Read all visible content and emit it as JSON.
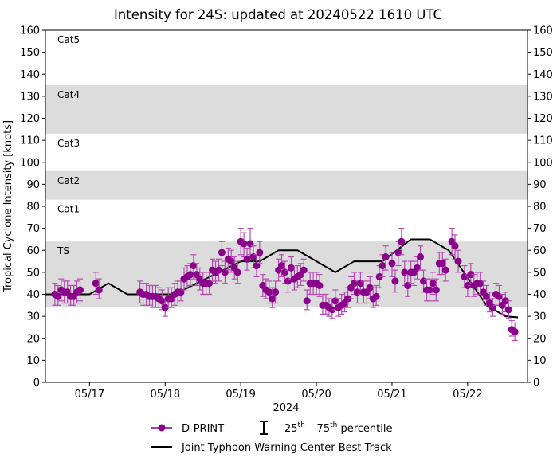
{
  "chart_data": {
    "type": "scatter",
    "title": "Intensity for 24S: updated at 20240522 1610 UTC",
    "xlabel": "2024",
    "ylabel": "Tropical Cyclone Intensity [knots]",
    "ylim": [
      0,
      160
    ],
    "xlim": [
      "05-16 10:00",
      "05-22 19:00"
    ],
    "yticks": [
      0,
      10,
      20,
      30,
      40,
      50,
      60,
      70,
      80,
      90,
      100,
      110,
      120,
      130,
      140,
      150,
      160
    ],
    "xticks": [
      {
        "t": "05-17 00:00",
        "label": "05/17"
      },
      {
        "t": "05-18 00:00",
        "label": "05/18"
      },
      {
        "t": "05-19 00:00",
        "label": "05/19"
      },
      {
        "t": "05-20 00:00",
        "label": "05/20"
      },
      {
        "t": "05-21 00:00",
        "label": "05/21"
      },
      {
        "t": "05-22 00:00",
        "label": "05/22"
      }
    ],
    "grid": false,
    "category_bands": [
      {
        "label": "TS",
        "min": 34,
        "max": 64,
        "shaded": true
      },
      {
        "label": "Cat1",
        "min": 64,
        "max": 83,
        "shaded": false
      },
      {
        "label": "Cat2",
        "min": 83,
        "max": 96,
        "shaded": true
      },
      {
        "label": "Cat3",
        "min": 96,
        "max": 113,
        "shaded": false
      },
      {
        "label": "Cat4",
        "min": 113,
        "max": 135,
        "shaded": true
      },
      {
        "label": "Cat5",
        "min": 135,
        "max": 160,
        "shaded": false
      }
    ],
    "colors": {
      "dprint": "#8b008b",
      "errorbar": "#b44bb4",
      "best_track": "#000000",
      "band": "#dcdcdc"
    },
    "legend": {
      "placement": "bottom",
      "dprint": "D-PRINT",
      "pct_a": "25",
      "pct_a_sup": "th",
      "pct_mid": " – 75",
      "pct_b_sup": "th",
      "pct_end": " percentile",
      "best_track": "Joint Typhoon Warning Center Best Track"
    },
    "series": [
      {
        "name": "Joint Typhoon Warning Center Best Track",
        "type": "line",
        "points": [
          [
            "05-16 10:00",
            40
          ],
          [
            "05-17 00:00",
            40
          ],
          [
            "05-17 06:00",
            45
          ],
          [
            "05-17 12:00",
            40
          ],
          [
            "05-18 03:00",
            40
          ],
          [
            "05-19 00:00",
            55
          ],
          [
            "05-19 06:00",
            55
          ],
          [
            "05-19 12:00",
            60
          ],
          [
            "05-19 18:00",
            60
          ],
          [
            "05-20 06:00",
            50
          ],
          [
            "05-20 12:00",
            55
          ],
          [
            "05-20 21:00",
            55
          ],
          [
            "05-21 06:00",
            65
          ],
          [
            "05-21 12:00",
            65
          ],
          [
            "05-21 18:00",
            60
          ],
          [
            "05-22 06:00",
            35
          ],
          [
            "05-22 12:00",
            30
          ],
          [
            "05-22 16:00",
            29.5
          ]
        ]
      },
      {
        "name": "D-PRINT",
        "type": "scatter-errorbar",
        "fields": [
          "time",
          "value",
          "p25",
          "p75"
        ],
        "points": [
          [
            "05-16 13:00",
            40,
            35,
            45
          ],
          [
            "05-16 14:00",
            39,
            35,
            44
          ],
          [
            "05-16 15:00",
            42,
            37,
            47
          ],
          [
            "05-16 16:00",
            41,
            36,
            46
          ],
          [
            "05-16 17:00",
            41,
            36,
            46
          ],
          [
            "05-16 18:00",
            39,
            35,
            44
          ],
          [
            "05-16 19:00",
            39,
            35,
            44
          ],
          [
            "05-16 20:00",
            41,
            36,
            46
          ],
          [
            "05-16 21:00",
            42,
            37,
            47
          ],
          [
            "05-17 02:00",
            45,
            40,
            50
          ],
          [
            "05-17 03:00",
            42,
            38,
            47
          ],
          [
            "05-17 16:00",
            41,
            36,
            46
          ],
          [
            "05-17 17:00",
            40,
            35,
            45
          ],
          [
            "05-17 18:00",
            40,
            35,
            45
          ],
          [
            "05-17 19:00",
            39,
            35,
            44
          ],
          [
            "05-17 20:00",
            39,
            34,
            44
          ],
          [
            "05-17 21:00",
            39,
            34,
            44
          ],
          [
            "05-17 22:00",
            38,
            34,
            43
          ],
          [
            "05-17 23:00",
            37,
            33,
            42
          ],
          [
            "05-18 00:00",
            34,
            30,
            38
          ],
          [
            "05-18 01:00",
            38,
            34,
            43
          ],
          [
            "05-18 02:00",
            38,
            34,
            43
          ],
          [
            "05-18 03:00",
            40,
            35,
            45
          ],
          [
            "05-18 04:00",
            41,
            36,
            46
          ],
          [
            "05-18 05:00",
            41,
            37,
            46
          ],
          [
            "05-18 06:00",
            47,
            42,
            52
          ],
          [
            "05-18 07:00",
            48,
            43,
            53
          ],
          [
            "05-18 08:00",
            49,
            44,
            54
          ],
          [
            "05-18 09:00",
            53,
            47,
            58
          ],
          [
            "05-18 10:00",
            49,
            44,
            54
          ],
          [
            "05-18 11:00",
            47,
            42,
            52
          ],
          [
            "05-18 12:00",
            45,
            40,
            50
          ],
          [
            "05-18 13:00",
            45,
            40,
            50
          ],
          [
            "05-18 14:00",
            45,
            40,
            50
          ],
          [
            "05-18 15:00",
            51,
            46,
            56
          ],
          [
            "05-18 16:00",
            50,
            45,
            55
          ],
          [
            "05-18 17:00",
            51,
            46,
            56
          ],
          [
            "05-18 18:00",
            59,
            53,
            64
          ],
          [
            "05-18 19:00",
            50,
            45,
            55
          ],
          [
            "05-18 20:00",
            56,
            51,
            61
          ],
          [
            "05-18 21:00",
            55,
            50,
            60
          ],
          [
            "05-18 22:00",
            52,
            47,
            57
          ],
          [
            "05-18 23:00",
            50,
            45,
            55
          ],
          [
            "05-19 00:00",
            64,
            58,
            70
          ],
          [
            "05-19 01:00",
            63,
            57,
            68
          ],
          [
            "05-19 02:00",
            56,
            51,
            61
          ],
          [
            "05-19 03:00",
            63,
            58,
            70
          ],
          [
            "05-19 04:00",
            57,
            52,
            62
          ],
          [
            "05-19 05:00",
            53,
            48,
            58
          ],
          [
            "05-19 06:00",
            59,
            54,
            64
          ],
          [
            "05-19 07:00",
            44,
            39,
            49
          ],
          [
            "05-19 08:00",
            42,
            38,
            47
          ],
          [
            "05-19 09:00",
            41,
            36,
            46
          ],
          [
            "05-19 10:00",
            38,
            34,
            43
          ],
          [
            "05-19 11:00",
            41,
            36,
            46
          ],
          [
            "05-19 12:00",
            51,
            46,
            56
          ],
          [
            "05-19 13:00",
            53,
            48,
            58
          ],
          [
            "05-19 14:00",
            50,
            45,
            55
          ],
          [
            "05-19 15:00",
            46,
            41,
            51
          ],
          [
            "05-19 16:00",
            52,
            47,
            57
          ],
          [
            "05-19 17:00",
            47,
            42,
            52
          ],
          [
            "05-19 18:00",
            48,
            43,
            53
          ],
          [
            "05-19 19:00",
            49,
            44,
            54
          ],
          [
            "05-19 20:00",
            51,
            46,
            56
          ],
          [
            "05-19 21:00",
            37,
            33,
            42
          ],
          [
            "05-19 22:00",
            45,
            40,
            50
          ],
          [
            "05-19 23:00",
            45,
            40,
            50
          ],
          [
            "05-20 00:00",
            45,
            40,
            50
          ],
          [
            "05-20 01:00",
            44,
            39,
            49
          ],
          [
            "05-20 02:00",
            35,
            31,
            40
          ],
          [
            "05-20 03:00",
            35,
            31,
            40
          ],
          [
            "05-20 04:00",
            34,
            30,
            38
          ],
          [
            "05-20 05:00",
            33,
            29,
            38
          ],
          [
            "05-20 06:00",
            37,
            33,
            42
          ],
          [
            "05-20 07:00",
            34,
            30,
            38
          ],
          [
            "05-20 08:00",
            35,
            31,
            40
          ],
          [
            "05-20 09:00",
            36,
            32,
            41
          ],
          [
            "05-20 10:00",
            38,
            34,
            43
          ],
          [
            "05-20 11:00",
            43,
            38,
            48
          ],
          [
            "05-20 12:00",
            45,
            40,
            50
          ],
          [
            "05-20 13:00",
            41,
            36,
            46
          ],
          [
            "05-20 14:00",
            45,
            40,
            50
          ],
          [
            "05-20 15:00",
            41,
            36,
            46
          ],
          [
            "05-20 16:00",
            41,
            36,
            46
          ],
          [
            "05-20 17:00",
            43,
            38,
            48
          ],
          [
            "05-20 18:00",
            38,
            34,
            43
          ],
          [
            "05-20 19:00",
            39,
            35,
            44
          ],
          [
            "05-20 20:00",
            48,
            43,
            53
          ],
          [
            "05-20 21:00",
            53,
            48,
            58
          ],
          [
            "05-20 22:00",
            57,
            51,
            62
          ],
          [
            "05-21 00:00",
            54,
            48,
            59
          ],
          [
            "05-21 01:00",
            46,
            41,
            51
          ],
          [
            "05-21 02:00",
            59,
            53,
            64
          ],
          [
            "05-21 03:00",
            64,
            58,
            70
          ],
          [
            "05-21 04:00",
            50,
            44,
            55
          ],
          [
            "05-21 05:00",
            44,
            39,
            49
          ],
          [
            "05-21 06:00",
            50,
            45,
            55
          ],
          [
            "05-21 07:00",
            50,
            44,
            55
          ],
          [
            "05-21 08:00",
            52,
            47,
            57
          ],
          [
            "05-21 09:00",
            57,
            51,
            62
          ],
          [
            "05-21 10:00",
            46,
            41,
            51
          ],
          [
            "05-21 11:00",
            42,
            37,
            47
          ],
          [
            "05-21 12:00",
            42,
            37,
            47
          ],
          [
            "05-21 13:00",
            45,
            40,
            50
          ],
          [
            "05-21 14:00",
            42,
            37,
            47
          ],
          [
            "05-21 15:00",
            54,
            49,
            59
          ],
          [
            "05-21 16:00",
            54,
            49,
            59
          ],
          [
            "05-21 17:00",
            51,
            46,
            56
          ],
          [
            "05-21 19:00",
            64,
            58,
            70
          ],
          [
            "05-21 20:00",
            62,
            56,
            67
          ],
          [
            "05-21 21:00",
            55,
            50,
            60
          ],
          [
            "05-21 23:00",
            48,
            43,
            53
          ],
          [
            "05-22 00:00",
            44,
            39,
            49
          ],
          [
            "05-22 01:00",
            49,
            44,
            54
          ],
          [
            "05-22 02:00",
            44,
            39,
            49
          ],
          [
            "05-22 03:00",
            45,
            40,
            50
          ],
          [
            "05-22 04:00",
            45,
            40,
            50
          ],
          [
            "05-22 05:00",
            41,
            36,
            46
          ],
          [
            "05-22 06:00",
            39,
            35,
            44
          ],
          [
            "05-22 07:00",
            36,
            32,
            41
          ],
          [
            "05-22 08:00",
            34,
            30,
            38
          ],
          [
            "05-22 09:00",
            40,
            35,
            45
          ],
          [
            "05-22 10:00",
            39,
            35,
            44
          ],
          [
            "05-22 11:00",
            35,
            31,
            40
          ],
          [
            "05-22 12:00",
            37,
            32,
            41
          ],
          [
            "05-22 13:00",
            33,
            29,
            37
          ],
          [
            "05-22 14:00",
            24,
            21,
            28
          ],
          [
            "05-22 15:00",
            23,
            19,
            27
          ]
        ]
      }
    ]
  }
}
